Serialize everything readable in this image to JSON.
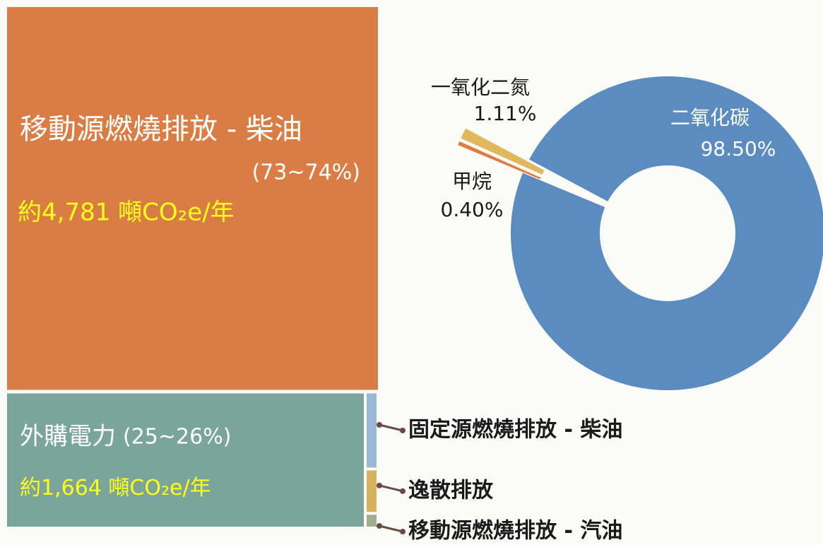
{
  "chart_data": [
    {
      "type": "treemap",
      "categories": [
        "移動源燃燒排放 - 柴油",
        "外購電力"
      ],
      "shares": [
        "(73~74%)",
        "(25~26%)"
      ],
      "values": [
        4781,
        1664
      ],
      "value_labels": [
        "約4,781 噸CO₂e/年",
        "約1,664 噸CO₂e/年"
      ],
      "colors": [
        "#d97d45",
        "#7ba59a"
      ],
      "others": {
        "categories": [
          "固定源燃燒排放 - 柴油",
          "逸散排放",
          "移動源燃燒排放 - 汽油"
        ],
        "values": [
          25,
          14,
          4
        ],
        "colors": [
          "#9ab8d6",
          "#d6b25c",
          "#9fae8e"
        ]
      }
    },
    {
      "type": "pie",
      "categories": [
        "二氧化碳",
        "一氧化二氮",
        "甲烷"
      ],
      "values": [
        98.5,
        1.11,
        0.4
      ],
      "value_labels": [
        "98.50%",
        "1.11%",
        "0.40%"
      ],
      "colors": [
        "#5a8cbf",
        "#e1b75c",
        "#e07b45"
      ]
    }
  ]
}
